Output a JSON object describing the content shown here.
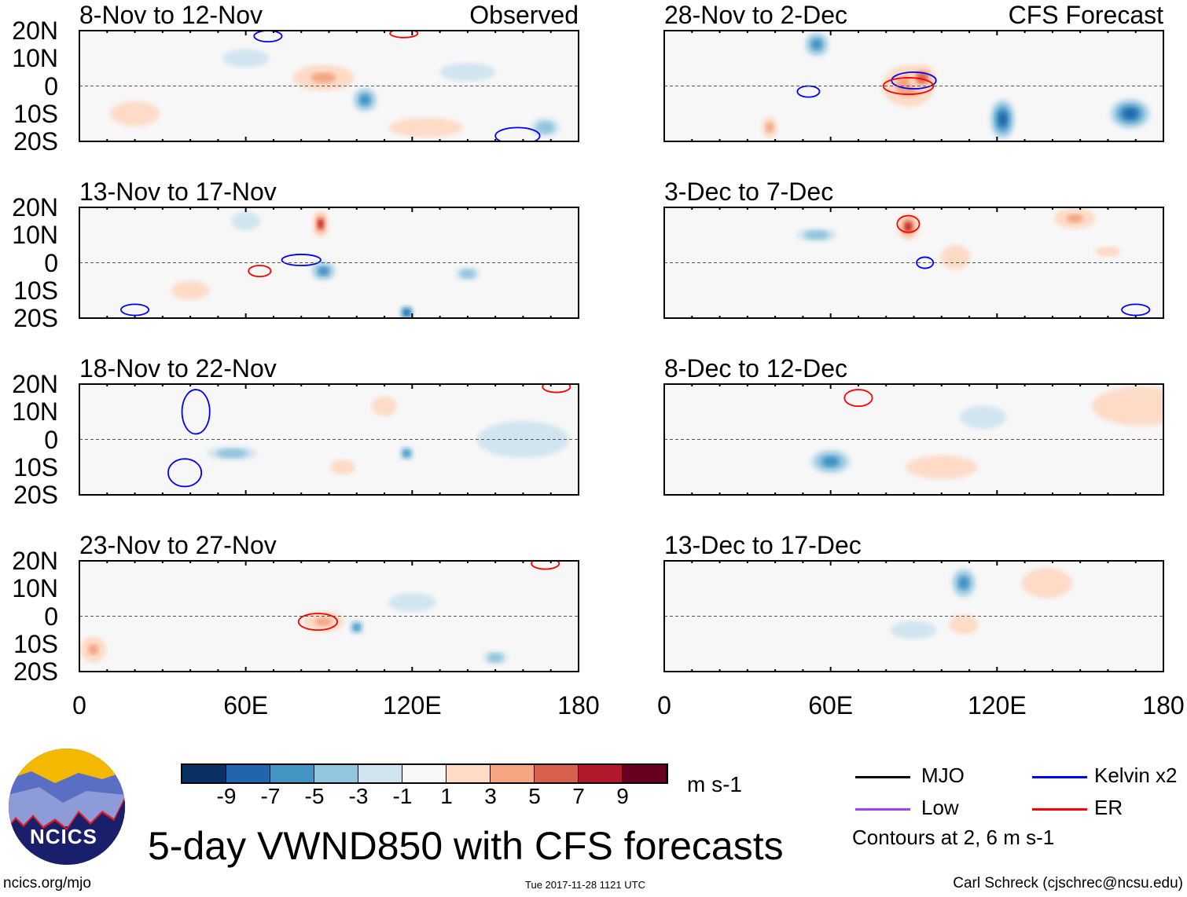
{
  "title": "5-day VWND850 with CFS forecasts",
  "footer": {
    "left": "ncics.org/mjo",
    "center": "Tue 2017-11-28 1121 UTC",
    "right": "Carl Schreck (cjschrec@ncsu.edu)"
  },
  "logo_text": "NCICS",
  "legend": {
    "items": [
      {
        "label": "MJO",
        "color": "#000000"
      },
      {
        "label": "Low",
        "color": "#a040ff"
      },
      {
        "label": "Kelvin x2",
        "color": "#0000ff"
      },
      {
        "label": "ER",
        "color": "#ff0000"
      }
    ],
    "note": "Contours at 2, 6 m s-1"
  },
  "chart_data": {
    "type": "heatmap",
    "variable": "VWND850",
    "units": "m s-1",
    "colorbar": {
      "levels": [
        "-9",
        "-7",
        "-5",
        "-3",
        "-1",
        "1",
        "3",
        "5",
        "7",
        "9"
      ],
      "colors": [
        "#0a3163",
        "#2166ac",
        "#4393c3",
        "#92c5de",
        "#d1e5f0",
        "#f7f7f7",
        "#fddbc7",
        "#f4a582",
        "#d6604d",
        "#b2182b",
        "#67001f"
      ]
    },
    "lat_labels": [
      "20N",
      "10N",
      "0",
      "10S",
      "20S"
    ],
    "lon_labels": [
      "0",
      "60E",
      "120E",
      "180"
    ],
    "lon_range": [
      0,
      180
    ],
    "lat_range": [
      -20,
      20
    ],
    "column_labels": {
      "left": "Observed",
      "right": "CFS Forecast"
    },
    "panels": [
      {
        "title": "8-Nov to 12-Nov",
        "features": [
          [
            88,
            3,
            12,
            5,
            5
          ],
          [
            125,
            -15,
            15,
            4,
            3
          ],
          [
            103,
            -5,
            5,
            5,
            -5
          ],
          [
            20,
            -10,
            10,
            5,
            3
          ],
          [
            168,
            -15,
            6,
            4,
            -3
          ],
          [
            60,
            10,
            10,
            4,
            -1.5
          ],
          [
            140,
            5,
            12,
            4,
            -1.5
          ]
        ],
        "contours": [
          [
            68,
            18,
            5,
            2,
            "#0000ff"
          ],
          [
            117,
            19,
            5,
            1.5,
            "#ff0000"
          ],
          [
            158,
            -18,
            8,
            3,
            "#0000ff"
          ]
        ]
      },
      {
        "title": "13-Nov to 17-Nov",
        "features": [
          [
            87,
            14,
            3,
            5,
            9
          ],
          [
            88,
            -3,
            5,
            4,
            -5
          ],
          [
            118,
            -18,
            3,
            3,
            -7
          ],
          [
            140,
            -4,
            5,
            3,
            -3
          ],
          [
            40,
            -10,
            8,
            4,
            2
          ],
          [
            60,
            15,
            6,
            4,
            -2
          ]
        ],
        "contours": [
          [
            65,
            -3,
            4,
            2,
            "#ff0000"
          ],
          [
            80,
            1,
            7,
            2,
            "#0000ff"
          ],
          [
            20,
            -17,
            5,
            2,
            "#0000ff"
          ]
        ]
      },
      {
        "title": "18-Nov to 22-Nov",
        "features": [
          [
            55,
            -5,
            10,
            3,
            -3
          ],
          [
            118,
            -5,
            3,
            3,
            -5
          ],
          [
            95,
            -10,
            5,
            3,
            3
          ],
          [
            160,
            0,
            20,
            8,
            -1.5
          ],
          [
            110,
            12,
            5,
            4,
            3
          ]
        ],
        "contours": [
          [
            42,
            10,
            5,
            8,
            "#0000ff"
          ],
          [
            38,
            -12,
            6,
            5,
            "#0000ff"
          ],
          [
            172,
            19,
            5,
            2,
            "#ff0000"
          ]
        ]
      },
      {
        "title": "23-Nov to 27-Nov",
        "features": [
          [
            88,
            -2,
            8,
            4,
            5
          ],
          [
            5,
            -12,
            5,
            5,
            5
          ],
          [
            100,
            -4,
            3,
            3,
            -5
          ],
          [
            150,
            -15,
            5,
            3,
            -3
          ],
          [
            120,
            5,
            10,
            4,
            -2
          ]
        ],
        "contours": [
          [
            86,
            -2,
            7,
            3,
            "#ff0000"
          ],
          [
            168,
            19,
            5,
            2,
            "#ff0000"
          ]
        ]
      },
      {
        "title": "28-Nov to 2-Dec",
        "features": [
          [
            88,
            0,
            10,
            8,
            6
          ],
          [
            93,
            3,
            5,
            5,
            8
          ],
          [
            122,
            -12,
            5,
            8,
            -7
          ],
          [
            168,
            -10,
            8,
            6,
            -7
          ],
          [
            55,
            15,
            5,
            5,
            -5
          ],
          [
            38,
            -15,
            3,
            4,
            6
          ]
        ],
        "contours": [
          [
            90,
            2,
            8,
            3,
            "#0000ff"
          ],
          [
            88,
            0,
            9,
            3,
            "#ff0000"
          ],
          [
            52,
            -2,
            4,
            2,
            "#0000ff"
          ]
        ]
      },
      {
        "title": "3-Dec to 7-Dec",
        "features": [
          [
            88,
            13,
            4,
            5,
            9
          ],
          [
            105,
            2,
            6,
            5,
            3
          ],
          [
            148,
            16,
            8,
            4,
            5
          ],
          [
            55,
            10,
            8,
            3,
            -3
          ],
          [
            160,
            4,
            5,
            2,
            4
          ]
        ],
        "contours": [
          [
            88,
            14,
            4,
            3,
            "#ff0000"
          ],
          [
            94,
            0,
            3,
            2,
            "#0000ff"
          ],
          [
            170,
            -17,
            5,
            2,
            "#0000ff"
          ]
        ]
      },
      {
        "title": "8-Dec to 12-Dec",
        "features": [
          [
            60,
            -8,
            8,
            5,
            -5
          ],
          [
            172,
            12,
            20,
            8,
            3
          ],
          [
            100,
            -10,
            15,
            5,
            2
          ],
          [
            115,
            8,
            10,
            5,
            -1.5
          ]
        ],
        "contours": [
          [
            70,
            15,
            5,
            3,
            "#ff0000"
          ]
        ]
      },
      {
        "title": "13-Dec to 17-Dec",
        "features": [
          [
            108,
            12,
            5,
            6,
            -5
          ],
          [
            138,
            12,
            10,
            6,
            4
          ],
          [
            108,
            -3,
            6,
            4,
            3
          ],
          [
            90,
            -5,
            10,
            4,
            -1.5
          ]
        ],
        "contours": []
      }
    ]
  }
}
